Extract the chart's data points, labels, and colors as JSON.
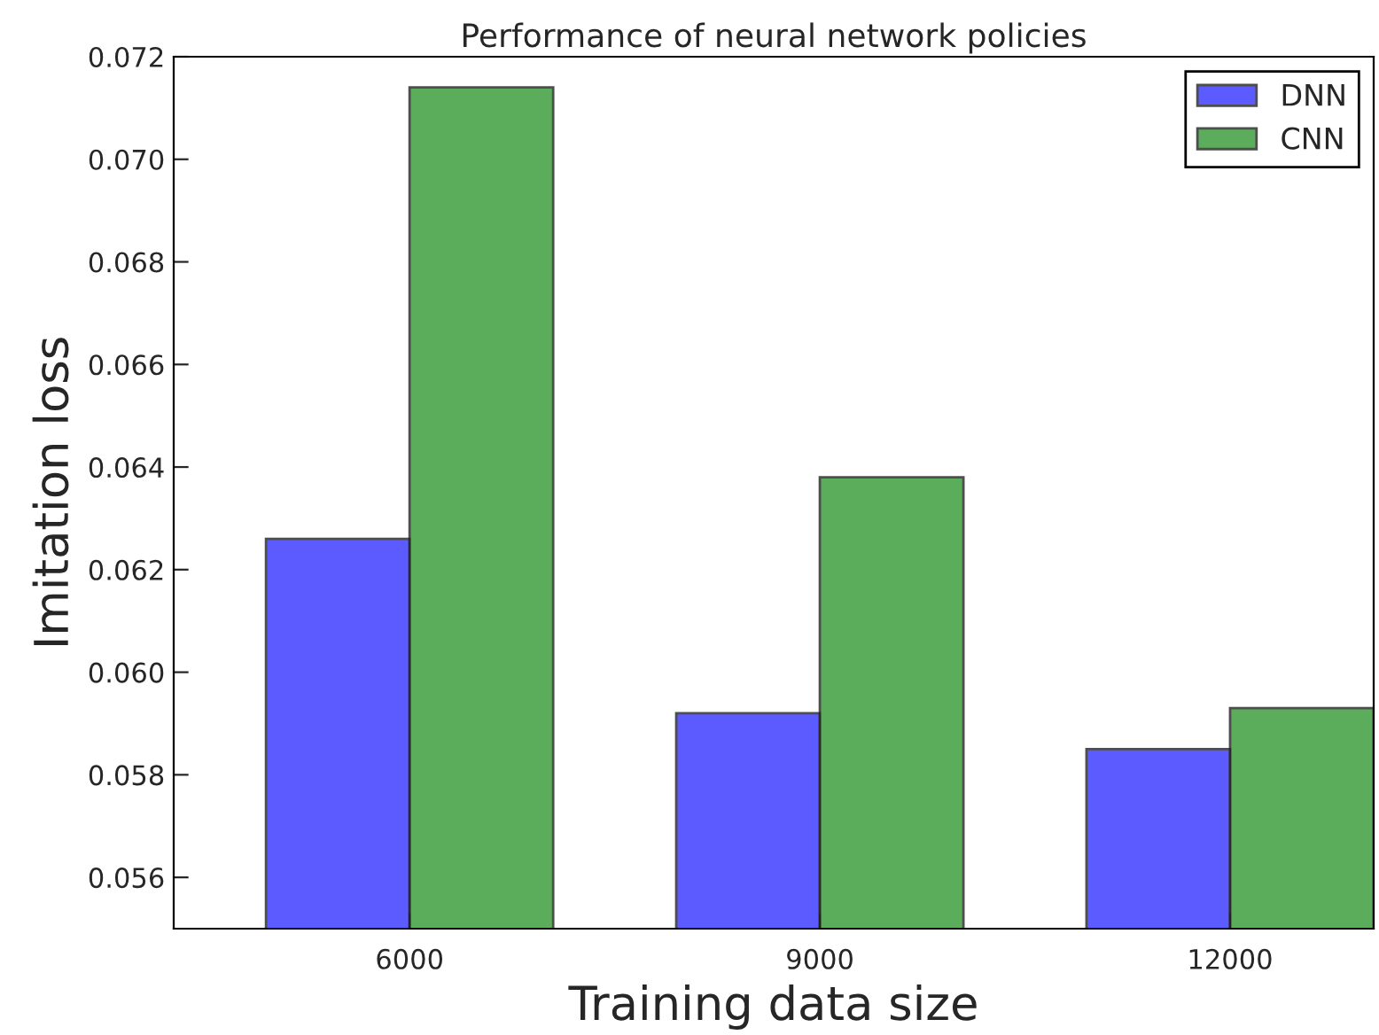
{
  "chart_data": {
    "type": "bar",
    "title": "Performance of neural network policies",
    "xlabel": "Training data size",
    "ylabel": "Imitation loss",
    "categories": [
      "6000",
      "9000",
      "12000"
    ],
    "series": [
      {
        "name": "DNN",
        "color": "#3333ff",
        "values": [
          0.0626,
          0.0592,
          0.0585
        ]
      },
      {
        "name": "CNN",
        "color": "#339933",
        "values": [
          0.0714,
          0.0638,
          0.0593
        ]
      }
    ],
    "ylim": [
      0.055,
      0.072
    ],
    "yticks": [
      {
        "value": 0.056,
        "label": "0.056"
      },
      {
        "value": 0.058,
        "label": "0.058"
      },
      {
        "value": 0.06,
        "label": "0.060"
      },
      {
        "value": 0.062,
        "label": "0.062"
      },
      {
        "value": 0.064,
        "label": "0.064"
      },
      {
        "value": 0.066,
        "label": "0.066"
      },
      {
        "value": 0.068,
        "label": "0.068"
      },
      {
        "value": 0.07,
        "label": "0.070"
      },
      {
        "value": 0.072,
        "label": "0.072"
      }
    ],
    "grid": false,
    "legend": "top right"
  }
}
